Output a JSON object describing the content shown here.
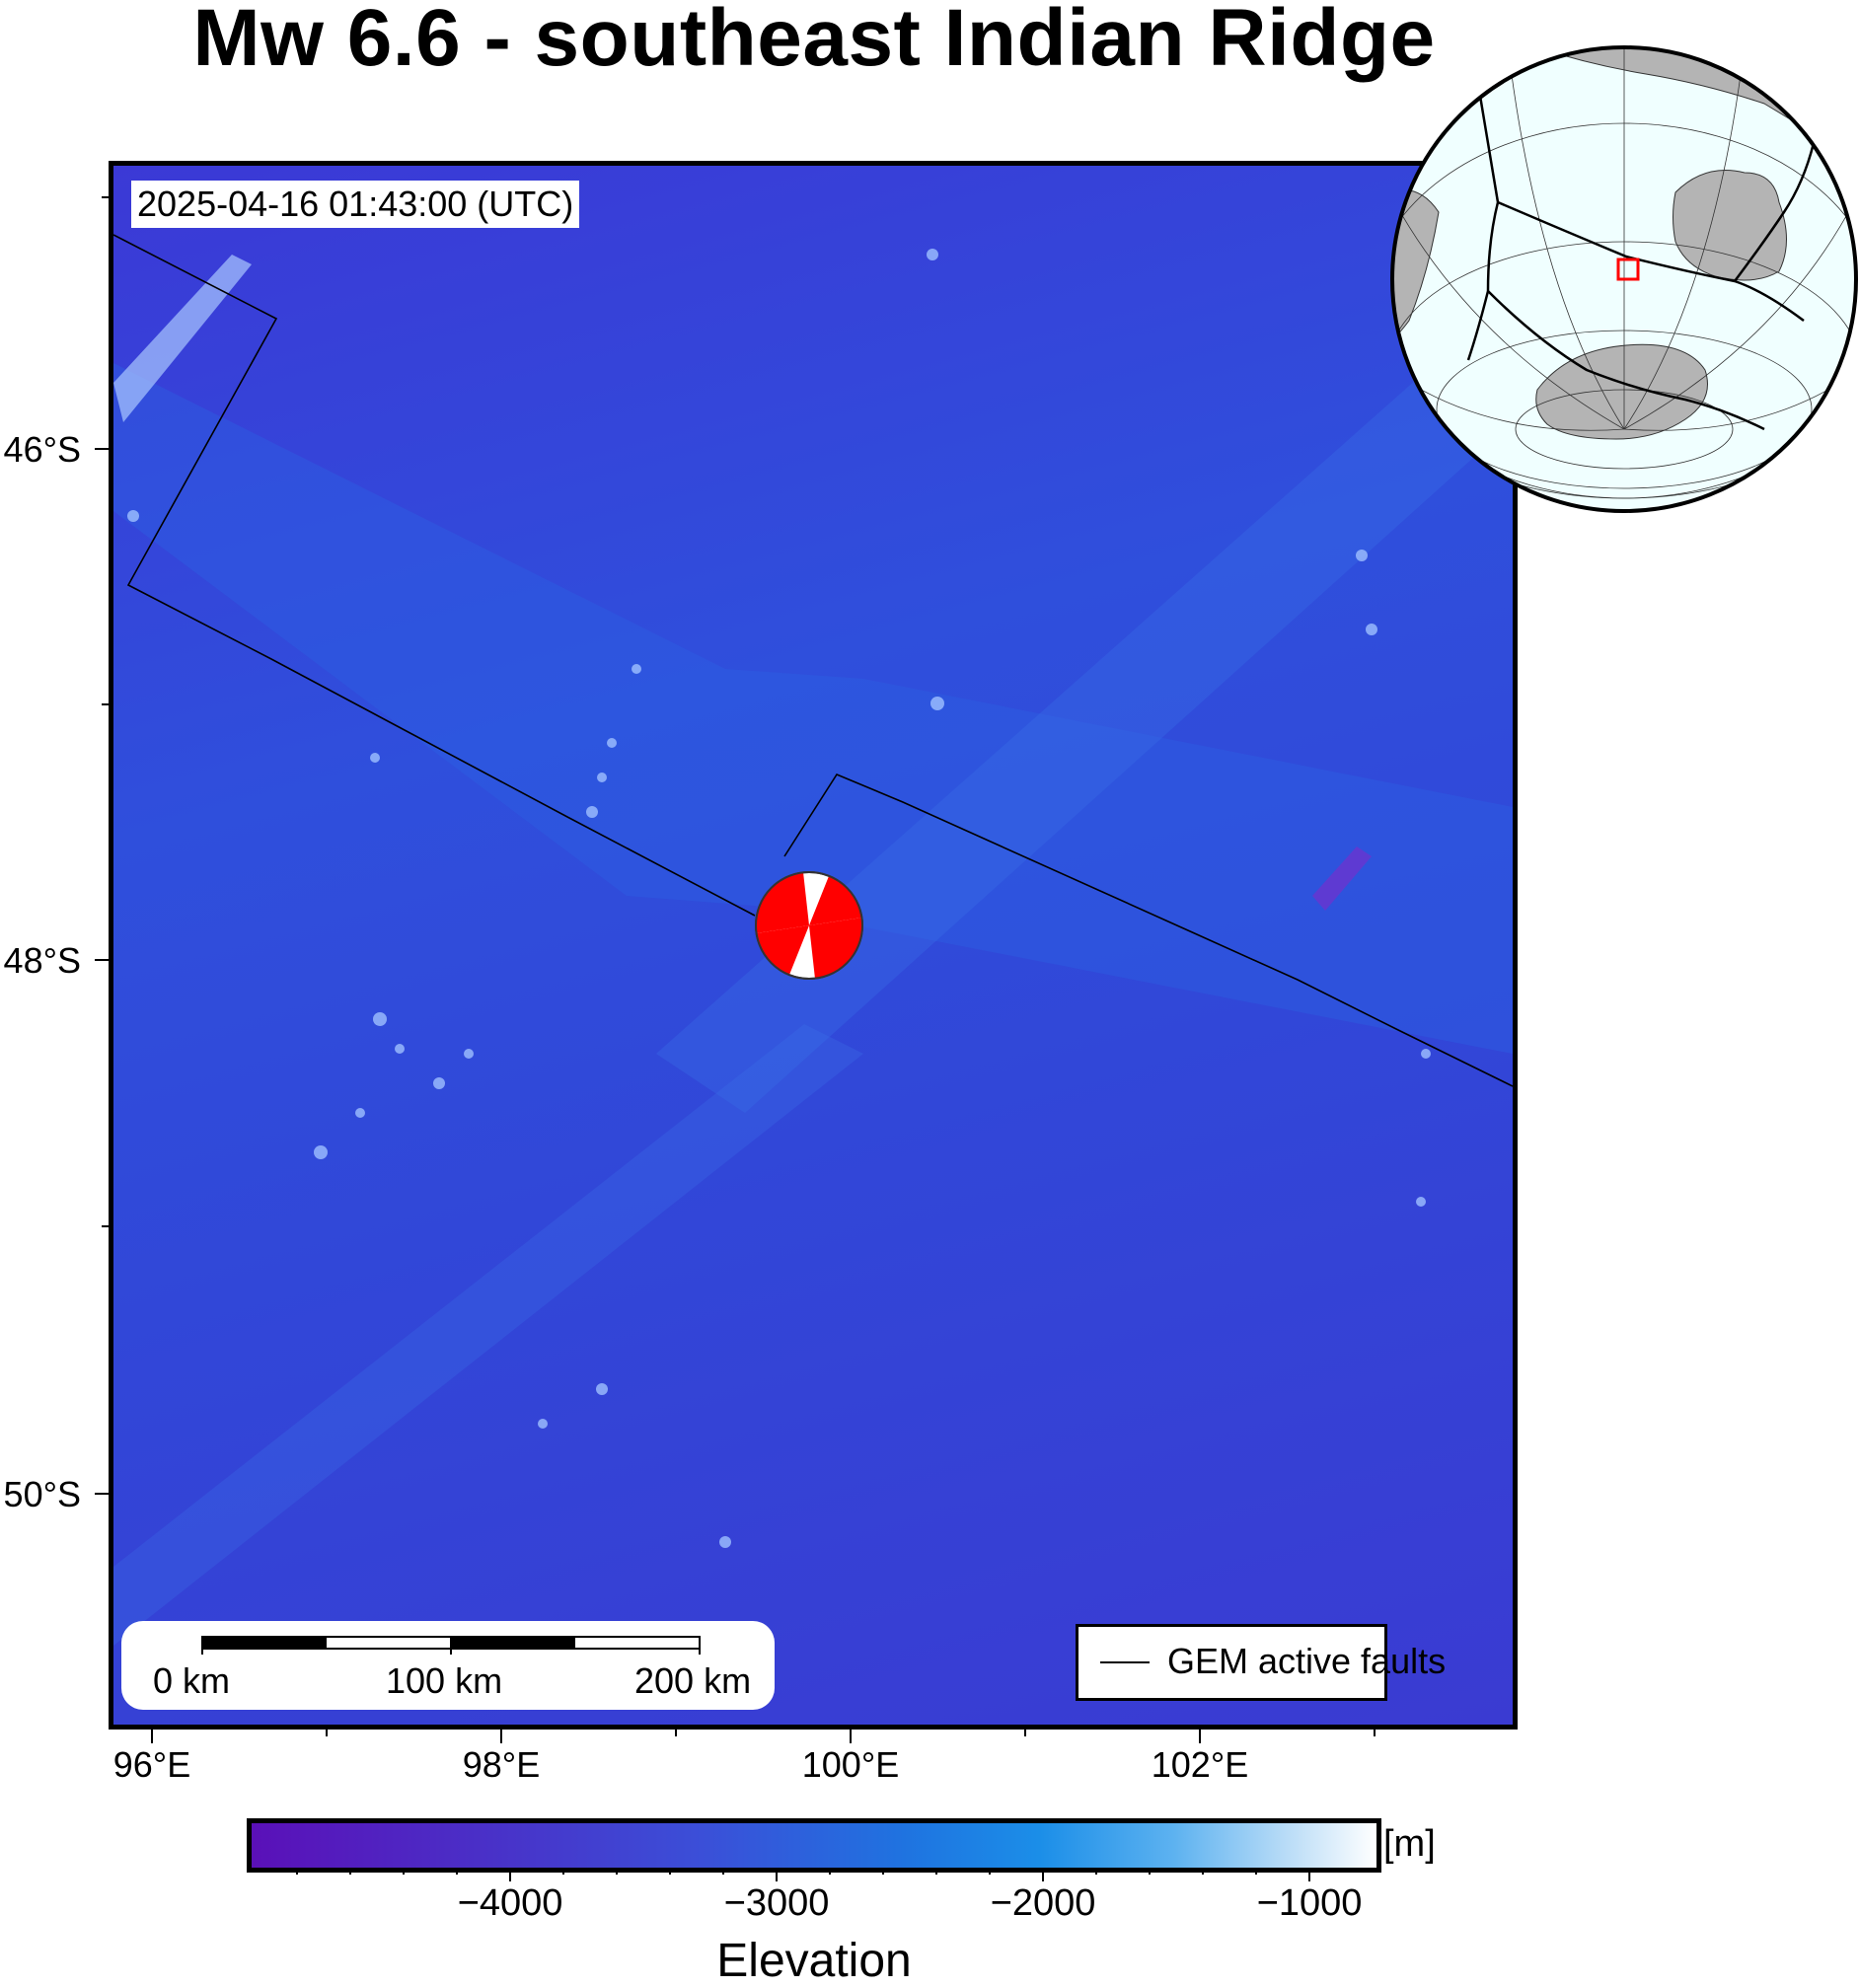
{
  "title": "Mw 6.6 - southeast Indian Ridge",
  "timestamp": "2025-04-16 01:43:00 (UTC)",
  "map": {
    "y_ticks": [
      "46°S",
      "48°S",
      "50°S"
    ],
    "x_ticks": [
      "96°E",
      "98°E",
      "100°E",
      "102°E"
    ],
    "background_color": "#3145d8"
  },
  "scalebar": {
    "labels": [
      "0 km",
      "100 km",
      "200 km"
    ]
  },
  "legend": {
    "fault_label": "GEM active faults"
  },
  "colorbar": {
    "tick_labels": [
      "−4000",
      "−3000",
      "−2000",
      "−1000"
    ],
    "unit": "[m]",
    "title": "Elevation"
  },
  "focal_mechanism": {
    "colors": [
      "#ff0000",
      "#ffffff"
    ]
  },
  "inset": {
    "marker_color": "#ff0000",
    "land_color": "#b4b4b4",
    "ocean_color": "#f0ffff"
  }
}
